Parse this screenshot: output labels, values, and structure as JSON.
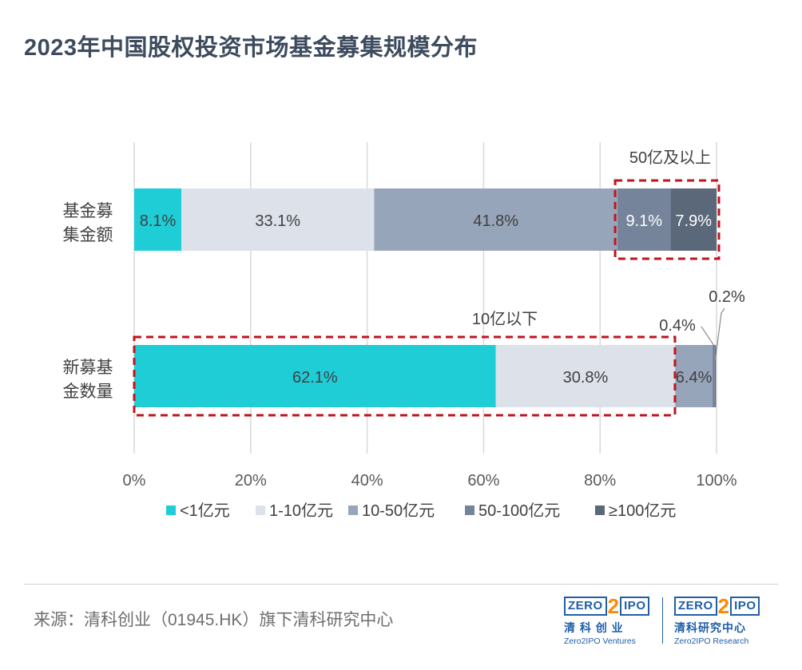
{
  "title": "2023年中国股权投资市场基金募集规模分布",
  "chart_data": {
    "type": "bar",
    "orientation": "horizontal",
    "stacked": true,
    "percent": true,
    "categories": [
      "基金募集金额",
      "新募基金数量"
    ],
    "category_lines": [
      [
        "基金募",
        "集金额"
      ],
      [
        "新募基",
        "金数量"
      ]
    ],
    "series": [
      {
        "name": "<1亿元",
        "color": "#1fcdd7",
        "values": [
          8.1,
          62.1
        ],
        "labels": [
          "8.1%",
          "62.1%"
        ],
        "label_color": "#404040"
      },
      {
        "name": "1-10亿元",
        "color": "#dde1ea",
        "values": [
          33.1,
          30.8
        ],
        "labels": [
          "33.1%",
          "30.8%"
        ],
        "label_color": "#404040"
      },
      {
        "name": "10-50亿元",
        "color": "#97a5ba",
        "values": [
          41.8,
          6.4
        ],
        "labels": [
          "41.8%",
          "6.4%"
        ],
        "label_color": "#404040"
      },
      {
        "name": "50-100亿元",
        "color": "#75849b",
        "values": [
          9.1,
          0.4
        ],
        "labels": [
          "9.1%",
          "0.4%"
        ],
        "label_color": "#ffffff"
      },
      {
        "name": "≥100亿元",
        "color": "#5b6879",
        "values": [
          7.9,
          0.2
        ],
        "labels": [
          "7.9%",
          "0.2%"
        ],
        "label_color": "#ffffff"
      }
    ],
    "xlim": [
      0,
      100
    ],
    "xticks": [
      "0%",
      "20%",
      "40%",
      "60%",
      "80%",
      "100%"
    ],
    "grid": true,
    "legend": "bottom",
    "annotations": [
      {
        "text": "50亿及以上",
        "category": 0,
        "from": 83.0,
        "to": 100
      },
      {
        "text": "10亿以下",
        "category": 1,
        "from": 0,
        "to": 93.0
      }
    ]
  },
  "footer": {
    "source": "来源：清科创业（01945.HK）旗下清科研究中心",
    "logos": [
      {
        "brand_left": "ZERO",
        "brand_mid": "2",
        "brand_right": "IPO",
        "cn": "清 科 创 业",
        "en": "Zero2IPO Ventures"
      },
      {
        "brand_left": "ZERO",
        "brand_mid": "2",
        "brand_right": "IPO",
        "cn": "清科研究中心",
        "en": "Zero2IPO Research"
      }
    ]
  }
}
